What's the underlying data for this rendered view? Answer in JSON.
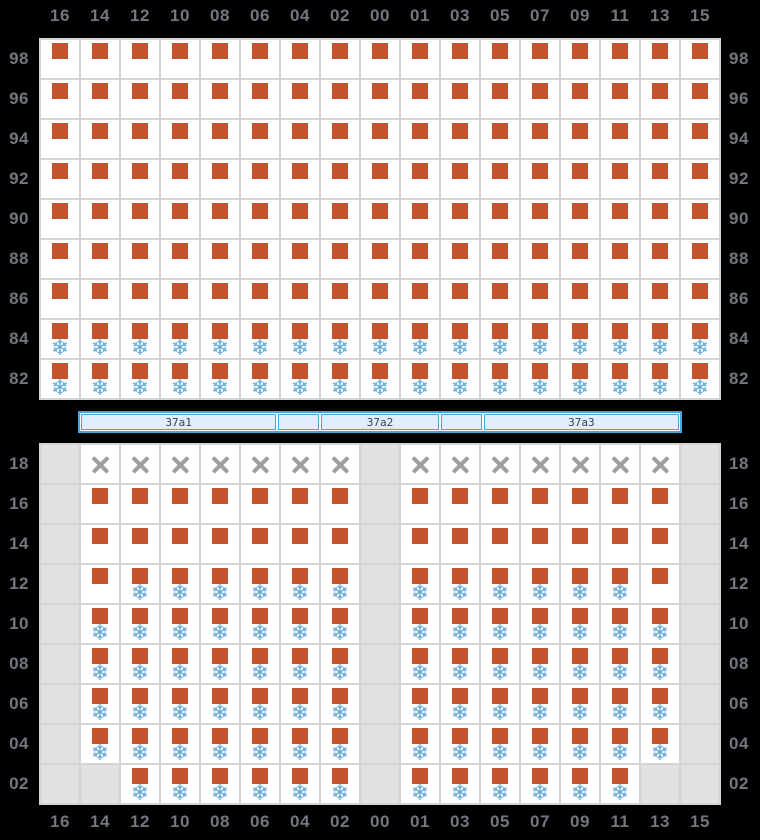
{
  "columns": [
    "16",
    "14",
    "12",
    "10",
    "08",
    "06",
    "04",
    "02",
    "00",
    "01",
    "03",
    "05",
    "07",
    "09",
    "11",
    "13",
    "15"
  ],
  "legend": {
    "B": "container-slot-occupied",
    "R": "container-slot-occupied-reefer",
    "X": "slot-blocked",
    "E": "no-slot"
  },
  "icons": {
    "snowflake": "❄",
    "container": "orange-square",
    "blocked": "gray-cross"
  },
  "top_section": {
    "name": "above-deck",
    "row_labels": [
      "98",
      "96",
      "94",
      "92",
      "90",
      "88",
      "86",
      "84",
      "82"
    ],
    "rows": [
      "BBBBBBBBBBBBBBBBB",
      "BBBBBBBBBBBBBBBBB",
      "BBBBBBBBBBBBBBBBB",
      "BBBBBBBBBBBBBBBBB",
      "BBBBBBBBBBBBBBBBB",
      "BBBBBBBBBBBBBBBBB",
      "BBBBBBBBBBBBBBBBB",
      "RRRRRRRRRRRRRRRRR",
      "RRRRRRRRRRRRRRRRR"
    ]
  },
  "hatch_bar": {
    "segments": [
      {
        "label": "37a1",
        "weight": 200
      },
      {
        "label": "",
        "weight": 40
      },
      {
        "label": "37a2",
        "weight": 120
      },
      {
        "label": "",
        "weight": 40
      },
      {
        "label": "37a3",
        "weight": 200
      }
    ]
  },
  "bottom_section": {
    "name": "below-deck",
    "row_labels": [
      "18",
      "16",
      "14",
      "12",
      "10",
      "08",
      "06",
      "04",
      "02"
    ],
    "rows": [
      "EXXXXXXXEXXXXXXXE",
      "EBBBBBBBEBBBBBBBE",
      "EBBBBBBBEBBBBBBBE",
      "EBRRRRRRERRRRRRBE",
      "ERRRRRRRERRRRRRRE",
      "ERRRRRRRERRRRRRRE",
      "ERRRRRRRERRRRRRRE",
      "ERRRRRRRERRRRRRRE",
      "EERRRRRRERRRRRREE"
    ]
  },
  "colors": {
    "background": "#000000",
    "label_text": "#72777f",
    "grid_line": "#d4d4d6",
    "cell_bg": "#ffffff",
    "cell_empty_bg": "#e1e1e3",
    "container_orange": "#c4522b",
    "reefer_blue": "#5ea8da",
    "blocked_gray": "#9c9ea0",
    "hatch_fill": "#def0fb",
    "hatch_border": "#44a6db"
  }
}
